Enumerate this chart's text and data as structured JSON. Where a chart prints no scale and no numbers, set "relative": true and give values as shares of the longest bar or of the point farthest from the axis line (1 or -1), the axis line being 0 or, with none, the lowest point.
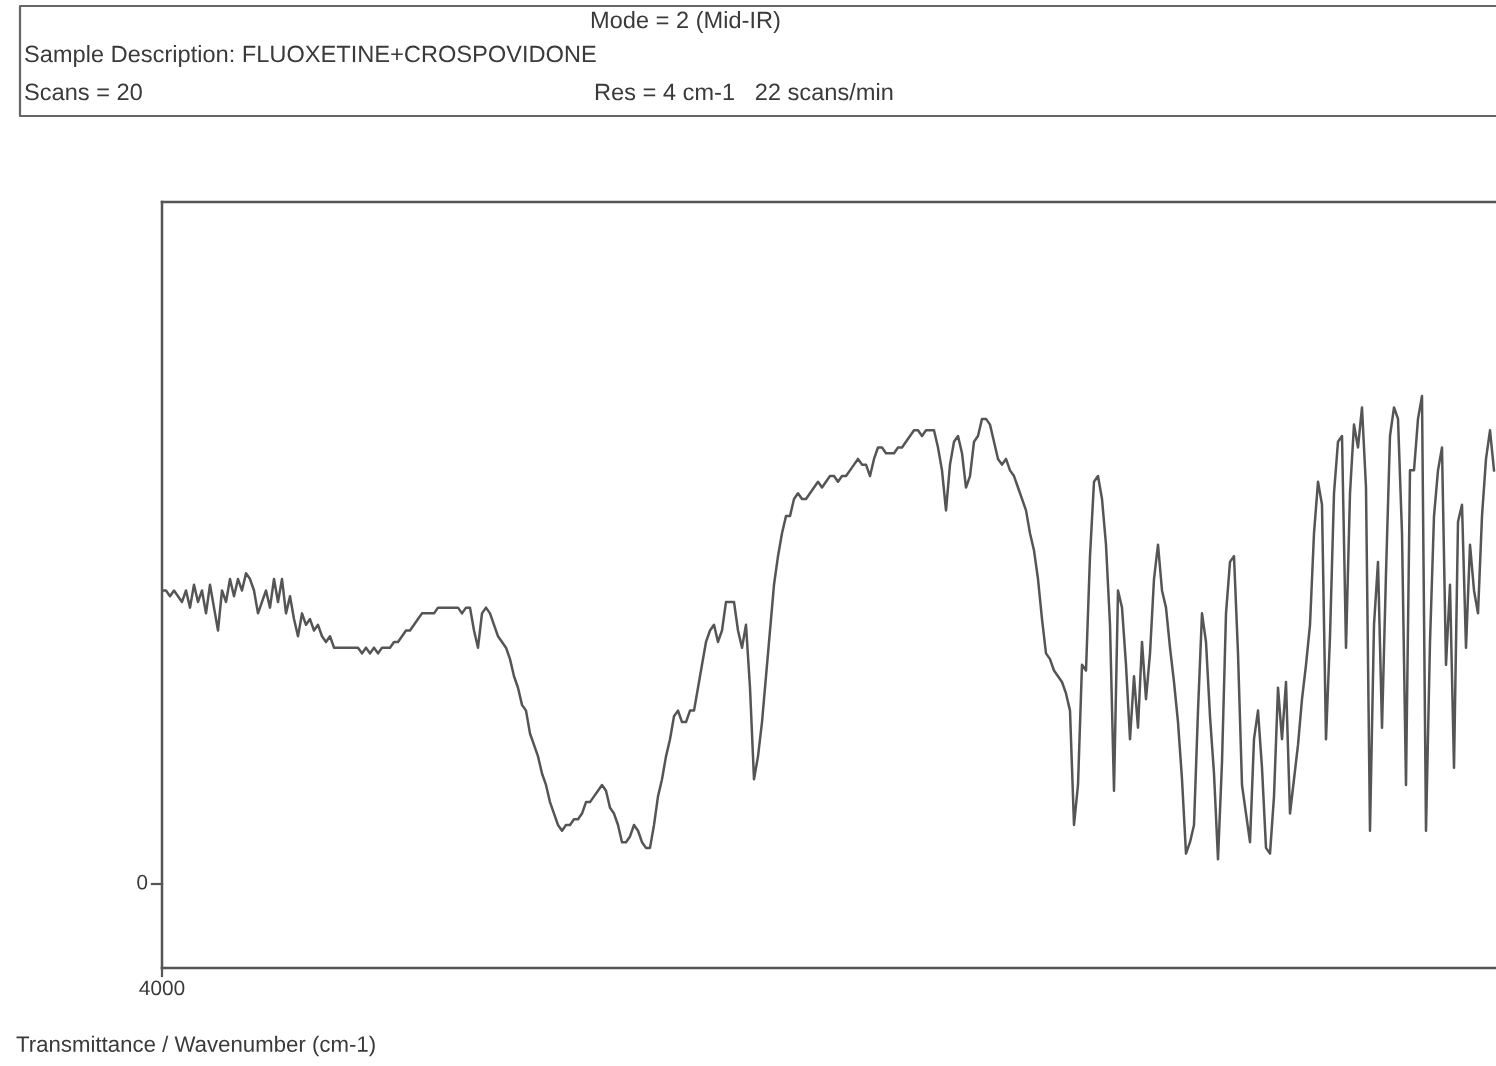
{
  "chart_data": {
    "type": "line",
    "relative": true,
    "line_style": "solid",
    "annotations": [
      "Mode = 2 (Mid-IR)",
      "Sample Description: FLUOXETINE+CROSPOVIDONE",
      "Scans = 20",
      "Res = 4 cm-1   22 scans/min",
      "4000",
      "0",
      "Transmittance / Wavenumber (cm-1)"
    ],
    "categories": [
      null,
      null,
      null,
      null,
      null,
      null,
      null,
      null,
      null,
      null,
      null,
      null,
      null,
      null,
      null,
      null,
      null,
      null,
      null,
      null,
      null,
      null,
      null,
      null,
      null,
      null,
      null,
      null,
      null,
      null,
      null,
      null,
      null,
      null,
      null,
      null,
      null,
      null,
      null,
      null,
      null,
      null,
      null,
      null,
      null,
      null,
      null,
      null,
      null,
      null,
      null,
      null,
      null,
      null,
      null,
      null,
      null,
      null,
      null,
      null,
      null,
      null,
      null,
      null,
      null,
      null,
      null,
      null,
      null,
      null,
      null,
      null,
      null,
      null,
      null,
      null,
      null,
      null,
      null,
      null,
      null,
      null,
      null,
      null,
      null,
      null,
      null,
      null,
      null,
      null,
      null,
      null,
      null,
      null,
      null,
      null,
      null,
      null,
      null,
      null,
      null,
      null,
      null,
      null,
      null,
      null,
      null,
      null,
      null,
      null,
      null,
      null,
      null,
      null,
      null,
      null,
      null,
      null,
      null,
      null,
      null,
      null,
      null,
      null,
      null,
      null,
      null,
      null,
      null,
      null,
      null,
      null,
      null,
      null,
      null,
      null,
      null,
      null,
      null,
      null,
      null,
      null,
      null,
      null,
      null,
      null,
      null,
      null,
      null,
      null,
      null,
      null,
      null,
      null,
      null,
      null,
      null,
      null,
      null,
      null,
      null,
      null,
      null,
      null,
      null,
      null,
      null,
      null,
      null,
      null,
      null,
      null,
      null,
      null,
      null,
      null,
      null,
      null,
      null,
      null,
      null,
      null,
      null,
      null,
      null,
      null,
      null,
      null,
      null,
      null,
      null,
      null,
      null,
      null,
      null,
      null,
      null,
      null,
      null,
      null,
      null,
      null,
      null,
      null,
      null,
      null,
      null,
      null,
      null,
      null,
      null,
      null,
      null,
      null,
      null,
      null,
      null,
      null,
      null,
      null,
      null,
      null,
      null,
      null,
      null,
      null,
      null,
      null,
      null,
      null,
      null,
      null,
      null,
      null,
      null,
      null,
      null,
      null,
      null,
      null,
      null,
      null,
      null,
      null,
      null,
      null,
      null,
      null,
      null,
      null,
      null,
      null,
      null,
      null,
      null,
      null,
      null,
      null,
      null,
      null,
      null,
      null,
      null,
      null,
      null,
      null,
      null,
      null,
      null,
      null,
      null,
      null,
      null,
      null,
      null,
      null,
      null,
      null,
      null,
      null,
      null,
      null,
      null,
      null,
      null,
      null,
      null,
      null,
      null,
      null,
      null,
      null,
      null,
      null,
      null,
      null,
      null,
      null,
      null,
      null,
      null,
      null,
      null,
      null,
      null,
      null,
      null,
      null,
      null,
      null,
      null,
      null,
      null,
      null,
      null,
      null,
      null,
      null,
      null,
      null,
      null,
      null,
      null,
      null,
      null,
      null,
      null,
      null,
      null,
      null,
      null,
      null,
      null,
      null
    ],
    "series": [
      {
        "color": "#555555",
        "values": [
          0.66,
          0.66,
          0.65,
          0.66,
          0.65,
          0.64,
          0.66,
          0.63,
          0.67,
          0.64,
          0.66,
          0.62,
          0.67,
          0.63,
          0.59,
          0.66,
          0.64,
          0.68,
          0.65,
          0.68,
          0.66,
          0.69,
          0.68,
          0.66,
          0.62,
          0.64,
          0.66,
          0.63,
          0.68,
          0.64,
          0.68,
          0.62,
          0.65,
          0.61,
          0.58,
          0.62,
          0.6,
          0.61,
          0.59,
          0.6,
          0.58,
          0.57,
          0.58,
          0.56,
          0.56,
          0.56,
          0.56,
          0.56,
          0.56,
          0.56,
          0.55,
          0.56,
          0.55,
          0.56,
          0.55,
          0.56,
          0.56,
          0.56,
          0.57,
          0.57,
          0.58,
          0.59,
          0.59,
          0.6,
          0.61,
          0.62,
          0.62,
          0.62,
          0.62,
          0.63,
          0.63,
          0.63,
          0.63,
          0.63,
          0.63,
          0.62,
          0.63,
          0.63,
          0.59,
          0.56,
          0.62,
          0.63,
          0.62,
          0.6,
          0.58,
          0.57,
          0.56,
          0.54,
          0.51,
          0.49,
          0.46,
          0.45,
          0.41,
          0.39,
          0.37,
          0.34,
          0.32,
          0.29,
          0.27,
          0.25,
          0.24,
          0.25,
          0.25,
          0.26,
          0.26,
          0.27,
          0.29,
          0.29,
          0.3,
          0.31,
          0.32,
          0.31,
          0.28,
          0.27,
          0.25,
          0.22,
          0.22,
          0.23,
          0.25,
          0.24,
          0.22,
          0.21,
          0.21,
          0.25,
          0.3,
          0.33,
          0.37,
          0.4,
          0.44,
          0.45,
          0.43,
          0.43,
          0.45,
          0.45,
          0.49,
          0.53,
          0.57,
          0.59,
          0.6,
          0.57,
          0.59,
          0.64,
          0.64,
          0.64,
          0.59,
          0.56,
          0.6,
          0.49,
          0.33,
          0.37,
          0.43,
          0.51,
          0.59,
          0.67,
          0.72,
          0.76,
          0.79,
          0.79,
          0.82,
          0.83,
          0.82,
          0.82,
          0.83,
          0.84,
          0.85,
          0.84,
          0.85,
          0.86,
          0.86,
          0.85,
          0.86,
          0.86,
          0.87,
          0.88,
          0.89,
          0.88,
          0.88,
          0.86,
          0.89,
          0.91,
          0.91,
          0.9,
          0.9,
          0.9,
          0.91,
          0.91,
          0.92,
          0.93,
          0.94,
          0.94,
          0.93,
          0.94,
          0.94,
          0.94,
          0.91,
          0.87,
          0.8,
          0.88,
          0.92,
          0.93,
          0.9,
          0.84,
          0.86,
          0.92,
          0.93,
          0.96,
          0.96,
          0.95,
          0.92,
          0.89,
          0.88,
          0.89,
          0.87,
          0.86,
          0.84,
          0.82,
          0.8,
          0.76,
          0.73,
          0.68,
          0.61,
          0.55,
          0.54,
          0.52,
          0.51,
          0.5,
          0.48,
          0.45,
          0.25,
          0.32,
          0.53,
          0.52,
          0.72,
          0.85,
          0.86,
          0.82,
          0.74,
          0.6,
          0.31,
          0.66,
          0.63,
          0.53,
          0.4,
          0.51,
          0.42,
          0.57,
          0.47,
          0.55,
          0.68,
          0.74,
          0.66,
          0.63,
          0.56,
          0.5,
          0.43,
          0.33,
          0.2,
          0.22,
          0.25,
          0.45,
          0.62,
          0.57,
          0.44,
          0.34,
          0.19,
          0.36,
          0.62,
          0.71,
          0.72,
          0.55,
          0.32,
          0.27,
          0.22,
          0.4,
          0.45,
          0.35,
          0.21,
          0.2,
          0.3,
          0.49,
          0.4,
          0.5,
          0.27,
          0.33,
          0.39,
          0.47,
          0.53,
          0.6,
          0.76,
          0.85,
          0.81,
          0.4,
          0.58,
          0.83,
          0.92,
          0.93,
          0.56,
          0.83,
          0.95,
          0.91,
          0.98,
          0.84,
          0.24,
          0.6,
          0.71,
          0.42,
          0.69,
          0.93,
          0.98,
          0.96,
          0.76,
          0.32,
          0.87,
          0.87,
          0.96,
          1.0,
          0.24,
          0.57,
          0.79,
          0.87,
          0.91,
          0.53,
          0.67,
          0.35,
          0.78,
          0.81,
          0.56,
          0.74,
          0.66,
          0.62,
          0.79,
          0.89,
          0.94,
          0.87
        ]
      }
    ]
  }
}
